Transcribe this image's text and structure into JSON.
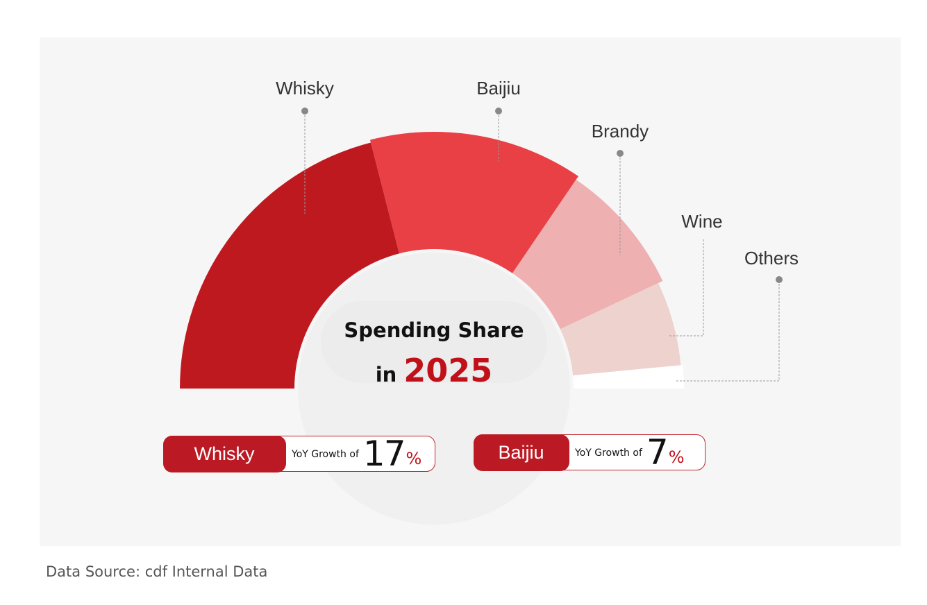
{
  "chart_data": {
    "type": "pie",
    "style": "half-donut",
    "center_title": "Spending Share",
    "center_in": "in",
    "center_year": "2025",
    "categories": [
      "Whisky",
      "Baijiu",
      "Brandy",
      "Wine",
      "Others"
    ],
    "values": [
      42,
      27,
      17,
      11,
      3
    ],
    "colors": [
      "#bf1920",
      "#e84044",
      "#eeb0b0",
      "#edd2cd",
      "#ffffff"
    ]
  },
  "highlights": [
    {
      "name": "Whisky",
      "prefix": "YoY Growth of",
      "value": "17",
      "unit": "%"
    },
    {
      "name": "Baijiu",
      "prefix": "YoY Growth of",
      "value": "7",
      "unit": "%"
    }
  ],
  "footer": {
    "source": "Data Source: cdf Internal Data"
  }
}
